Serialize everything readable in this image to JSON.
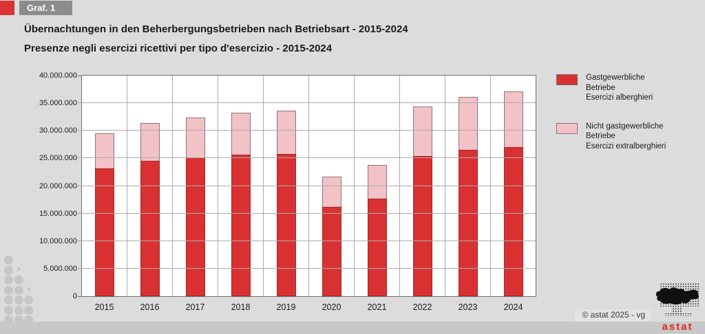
{
  "header": {
    "badge": "Graf. 1",
    "title_de": "Übernachtungen in den Beherbergungsbetrieben nach Betriebsart - 2015-2024",
    "title_it": "Presenze negli esercizi ricettivi per tipo d'esercizio - 2015-2024"
  },
  "chart_data": {
    "type": "bar",
    "stacked": true,
    "title": "Übernachtungen in den Beherbergungsbetrieben nach Betriebsart - 2015-2024",
    "subtitle": "Presenze negli esercizi ricettivi per tipo d'esercizio - 2015-2024",
    "categories": [
      "2015",
      "2016",
      "2017",
      "2018",
      "2019",
      "2020",
      "2021",
      "2022",
      "2023",
      "2024"
    ],
    "series": [
      {
        "name": "Gastgewerbliche Betriebe / Esercizi alberghieri",
        "color": "#d93132",
        "values": [
          23200000,
          24500000,
          25200000,
          25700000,
          25800000,
          16200000,
          17700000,
          25400000,
          26500000,
          27000000
        ]
      },
      {
        "name": "Nicht gastgewerbliche Betriebe / Esercizi extralberghieri",
        "color": "#f2c2c7",
        "values": [
          6300000,
          6800000,
          7200000,
          7600000,
          7900000,
          5500000,
          6100000,
          9000000,
          9600000,
          10100000
        ]
      }
    ],
    "totals": [
      29500000,
      31300000,
      32400000,
      33300000,
      33700000,
      21700000,
      23800000,
      34400000,
      36100000,
      37100000
    ],
    "xlabel": "",
    "ylabel": "",
    "ylim": [
      0,
      40000000
    ],
    "ytick_step": 5000000,
    "ytick_labels": [
      "0",
      "5.000.000",
      "10.000.000",
      "15.000.000",
      "20.000.000",
      "25.000.000",
      "30.000.000",
      "35.000.000",
      "40.000.000"
    ],
    "grid": true,
    "legend_position": "right"
  },
  "legend": {
    "items": [
      {
        "color": "#d93132",
        "lines": [
          "Gastgewerbliche",
          "Betriebe",
          "Esercizi alberghieri"
        ]
      },
      {
        "color": "#f2c2c7",
        "lines": [
          "Nicht gastgewerbliche",
          "Betriebe",
          "Esercizi extralberghieri"
        ]
      }
    ]
  },
  "footer": {
    "copyright": "© astat 2025 - vg",
    "logo_text": "astat"
  },
  "colors": {
    "bar_red": "#d93132",
    "bar_pink": "#f2c2c7",
    "page_bg": "#dcdcdc",
    "plot_bg": "#ffffff",
    "gridline": "#ababab",
    "footer_strip": "#c8c8c8",
    "badge_bg": "#8c8c8c",
    "accent_red": "#d93334",
    "logo_red": "#de261c"
  }
}
